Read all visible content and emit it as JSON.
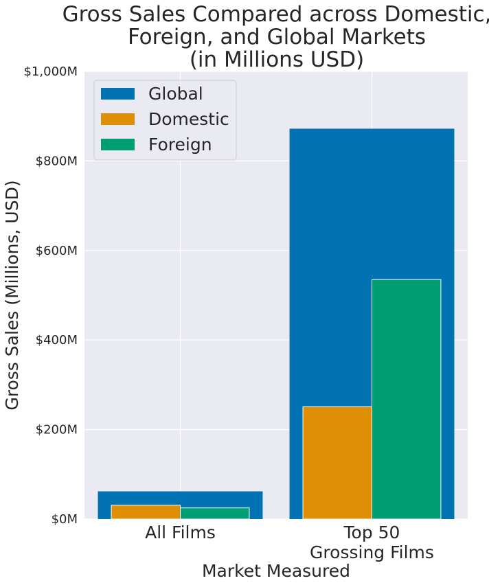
{
  "chart_data": {
    "type": "bar",
    "title_lines": [
      "Gross Sales Compared across Domestic,",
      "Foreign, and Global Markets",
      "(in Millions USD)"
    ],
    "xlabel": "Market Measured",
    "ylabel": "Gross Sales (Millions, USD)",
    "categories": [
      {
        "lines": [
          "All Films"
        ]
      },
      {
        "lines": [
          "Top 50",
          "Grossing Films"
        ]
      }
    ],
    "series": [
      {
        "name": "Global",
        "color": "#0173b2",
        "values": [
          62,
          872
        ]
      },
      {
        "name": "Domestic",
        "color": "#de8f05",
        "values": [
          31,
          251
        ]
      },
      {
        "name": "Foreign",
        "color": "#029e73",
        "values": [
          25,
          535
        ]
      }
    ],
    "ylim": [
      0,
      1000
    ],
    "yticks": [
      {
        "value": 0,
        "label": "$0M"
      },
      {
        "value": 200,
        "label": "$200M"
      },
      {
        "value": 400,
        "label": "$400M"
      },
      {
        "value": 600,
        "label": "$600M"
      },
      {
        "value": 800,
        "label": "$800M"
      },
      {
        "value": 1000,
        "label": "$1,000M"
      }
    ],
    "grid": true,
    "legend_position": "top-left",
    "colors": {
      "background": "#eaeaf2",
      "grid": "#ffffff",
      "text": "#262626"
    }
  }
}
